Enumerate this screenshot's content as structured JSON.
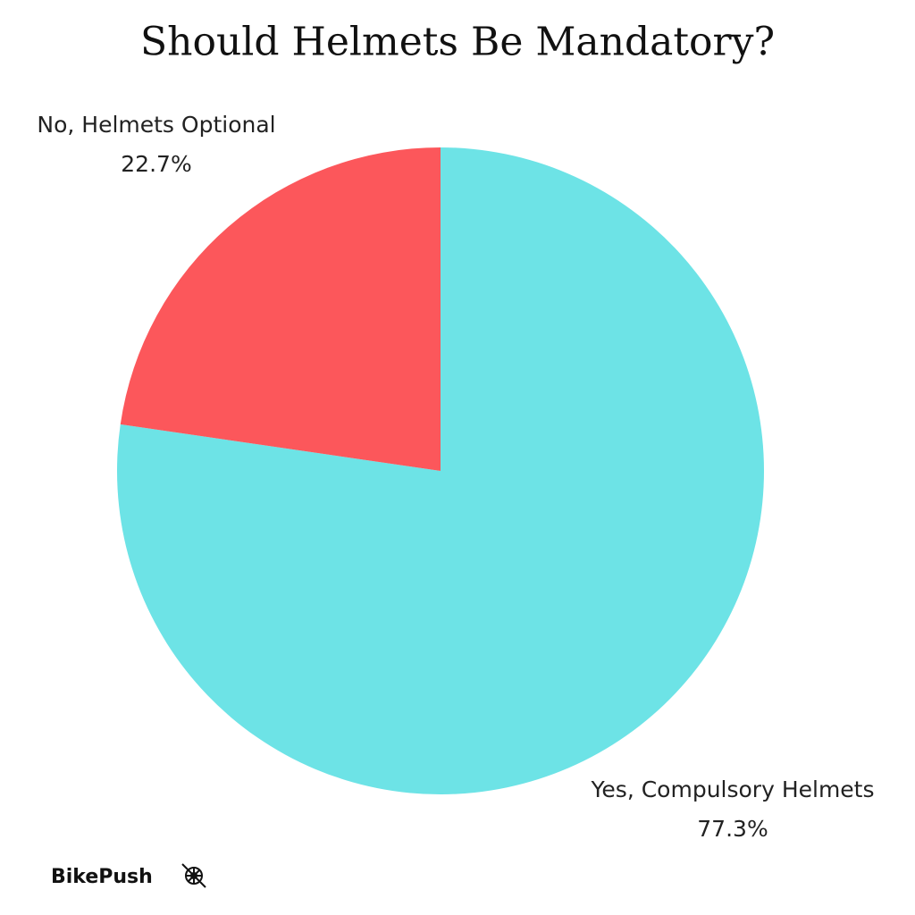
{
  "chart_data": {
    "type": "pie",
    "title": "Should Helmets Be Mandatory?",
    "categories": [
      "Yes, Compulsory Helmets",
      "No, Helmets Optional"
    ],
    "values": [
      77.3,
      22.7
    ],
    "value_labels": [
      "77.3%",
      "22.7%"
    ],
    "colors": [
      "#6de3e6",
      "#fc575b"
    ],
    "start_angle": 90,
    "direction": "clockwise",
    "brand": "BikePush"
  }
}
